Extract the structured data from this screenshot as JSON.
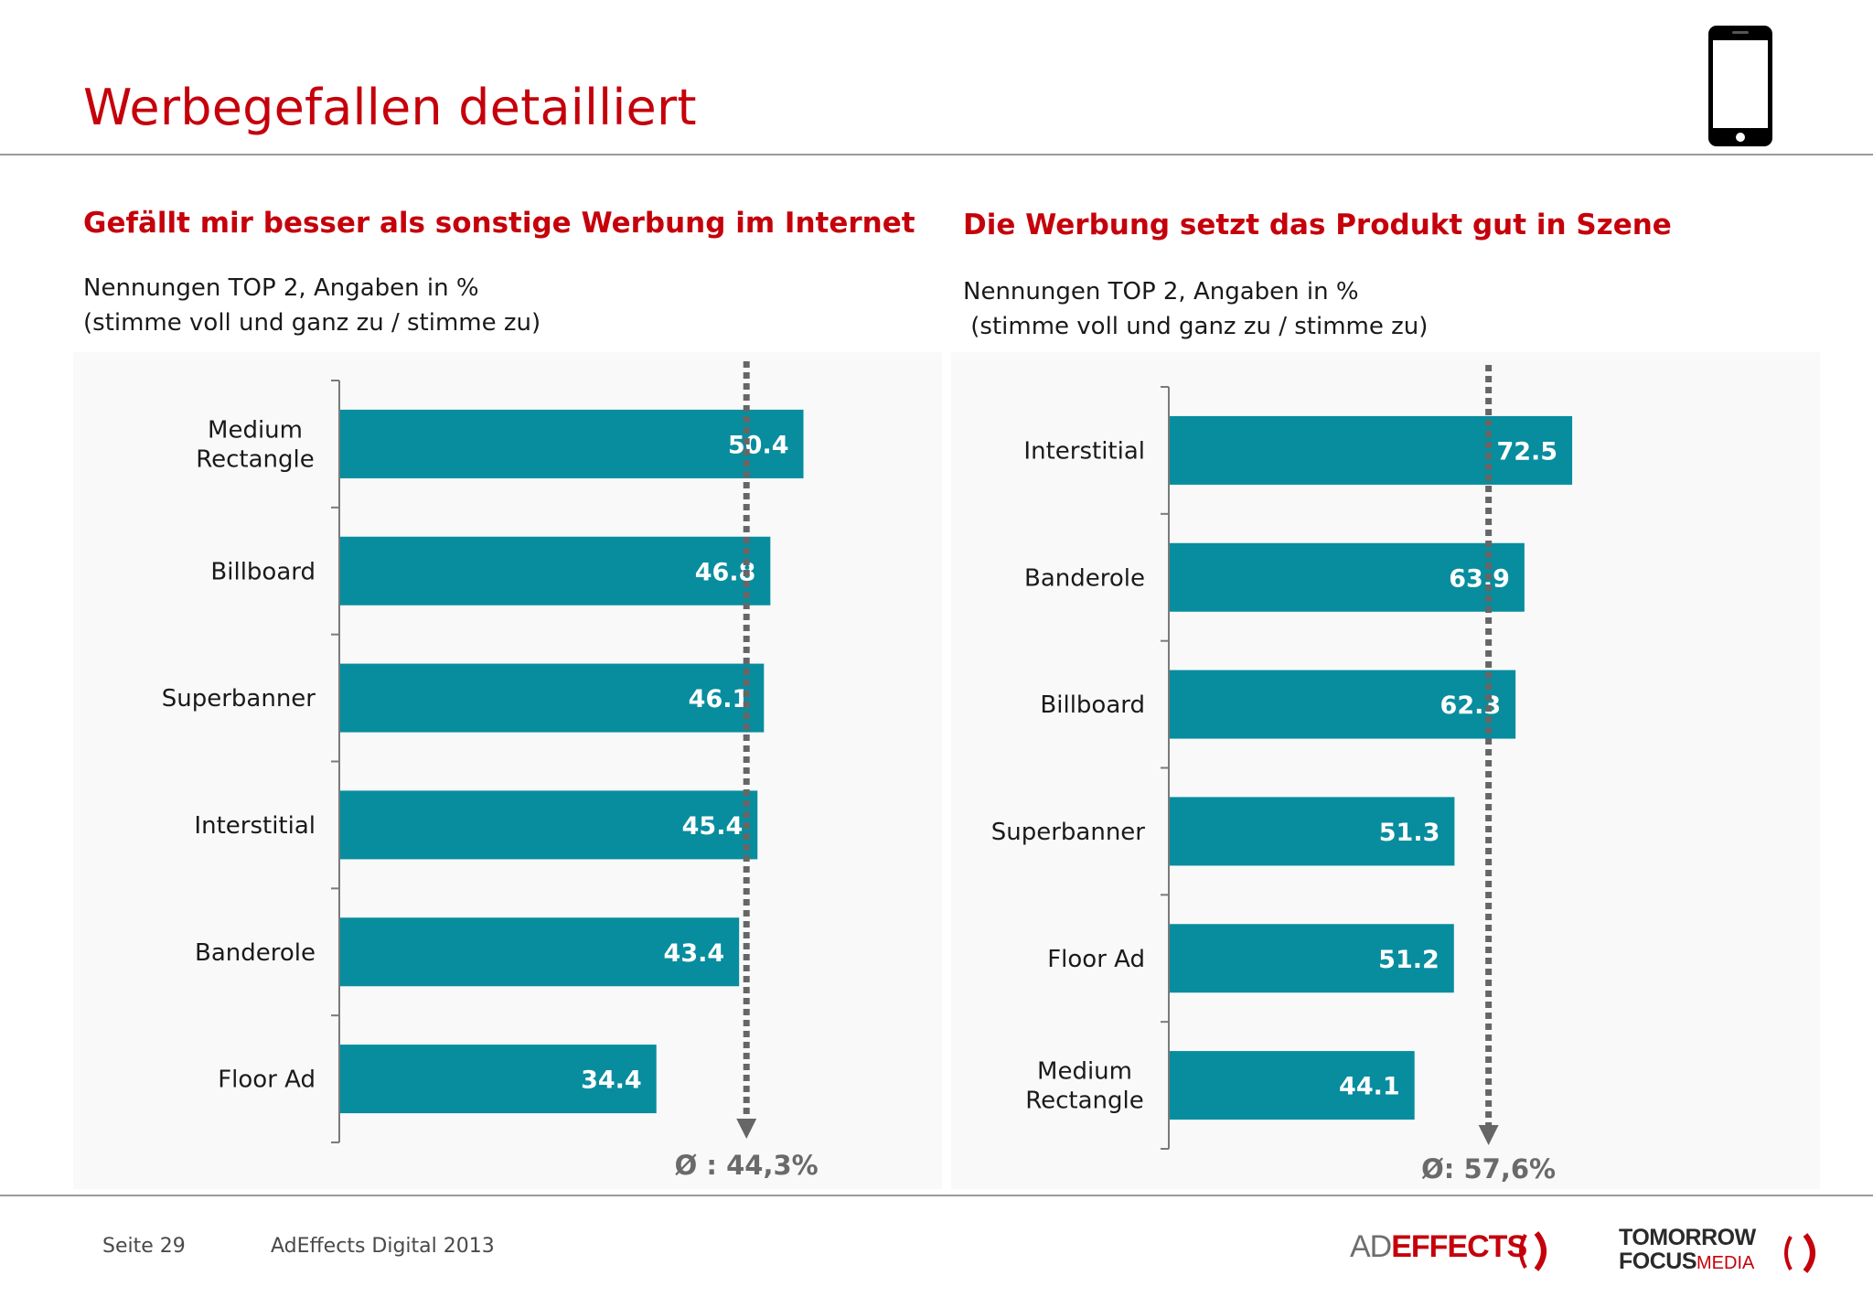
{
  "page": {
    "title": "Werbegefallen detailliert",
    "footer_page": "Seite 29",
    "footer_source": "AdEffects Digital 2013",
    "logo_ad": "AD",
    "logo_effects": "EFFECTS",
    "logo_tfm_line1": "TOMORROW",
    "logo_tfm_line2a": "FOCUS",
    "logo_tfm_line2b": "MEDIA",
    "icons": [
      "smartphone-icon"
    ],
    "colors": {
      "title": "#c5000b",
      "bar": "#078d9e",
      "average_line": "#666666"
    }
  },
  "chart_data": [
    {
      "type": "bar",
      "orientation": "horizontal",
      "title": "Gefällt mir besser als sonstige Werbung im Internet",
      "subtitle_line1": "Nennungen TOP 2, Angaben in %",
      "subtitle_line2": "(stimme voll und ganz zu / stimme zu)",
      "categories": [
        "Medium\nRectangle",
        "Billboard",
        "Superbanner",
        "Interstitial",
        "Banderole",
        "Floor Ad"
      ],
      "values": [
        50.4,
        46.8,
        46.1,
        45.4,
        43.4,
        34.4
      ],
      "value_labels": [
        "50.4",
        "46.8",
        "46.1",
        "45.4",
        "43.4",
        "34.4"
      ],
      "average": 44.3,
      "average_label": "Ø : 44,3%",
      "xlim": [
        0,
        100
      ],
      "grid": false,
      "legend": "none"
    },
    {
      "type": "bar",
      "orientation": "horizontal",
      "title": "Die Werbung setzt das Produkt gut in Szene",
      "subtitle_line1": "Nennungen TOP 2, Angaben in %",
      "subtitle_line2": " (stimme voll und ganz zu / stimme zu)",
      "categories": [
        "Interstitial",
        "Banderole",
        "Billboard",
        "Superbanner",
        "Floor Ad",
        "Medium\nRectangle"
      ],
      "values": [
        72.5,
        63.9,
        62.3,
        51.3,
        51.2,
        44.1
      ],
      "value_labels": [
        "72.5",
        "63.9",
        "62.3",
        "51.3",
        "51.2",
        "44.1"
      ],
      "average": 57.6,
      "average_label": "Ø: 57,6%",
      "xlim": [
        0,
        100
      ],
      "grid": false,
      "legend": "none"
    }
  ]
}
